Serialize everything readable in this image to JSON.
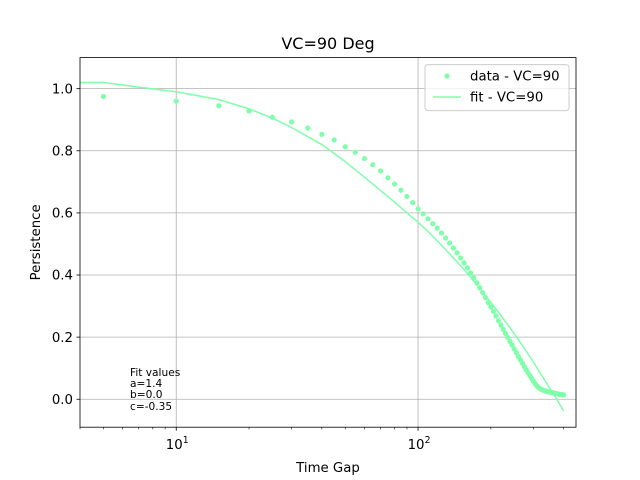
{
  "chart_data": {
    "type": "scatter",
    "title": "VC=90 Deg",
    "xlabel": "Time Gap",
    "ylabel": "Persistence",
    "xscale": "log",
    "xlim": [
      4.0,
      450
    ],
    "ylim": [
      -0.09,
      1.1
    ],
    "xticks": [
      {
        "value": 10,
        "base": "10",
        "exp": "1"
      },
      {
        "value": 100,
        "base": "10",
        "exp": "2"
      }
    ],
    "yticks": [
      {
        "value": 0.0,
        "label": "0.0"
      },
      {
        "value": 0.2,
        "label": "0.2"
      },
      {
        "value": 0.4,
        "label": "0.4"
      },
      {
        "value": 0.6,
        "label": "0.6"
      },
      {
        "value": 0.8,
        "label": "0.8"
      },
      {
        "value": 1.0,
        "label": "1.0"
      }
    ],
    "grid": true,
    "legend_position": "top-right",
    "color": "#7fffaa",
    "series": [
      {
        "name": "data - VC=90",
        "kind": "scatter",
        "x": [
          5,
          10,
          15,
          20,
          25,
          30,
          35,
          40,
          45,
          50,
          55,
          60,
          65,
          70,
          75,
          80,
          85,
          90,
          95,
          100,
          105,
          110,
          115,
          120,
          125,
          130,
          135,
          140,
          145,
          150,
          155,
          160,
          165,
          170,
          175,
          180,
          185,
          190,
          195,
          200,
          205,
          210,
          215,
          220,
          225,
          230,
          235,
          240,
          245,
          250,
          255,
          260,
          265,
          270,
          275,
          280,
          285,
          290,
          295,
          300,
          305,
          310,
          315,
          320,
          325,
          330,
          335,
          340,
          345,
          350,
          355,
          360,
          365,
          370,
          375,
          380,
          385,
          390,
          395,
          400
        ],
        "y": [
          0.975,
          0.96,
          0.945,
          0.928,
          0.908,
          0.893,
          0.873,
          0.853,
          0.835,
          0.813,
          0.795,
          0.775,
          0.755,
          0.735,
          0.713,
          0.693,
          0.673,
          0.653,
          0.633,
          0.613,
          0.597,
          0.581,
          0.565,
          0.551,
          0.535,
          0.519,
          0.503,
          0.487,
          0.471,
          0.455,
          0.439,
          0.423,
          0.407,
          0.391,
          0.375,
          0.359,
          0.343,
          0.327,
          0.311,
          0.297,
          0.283,
          0.268,
          0.253,
          0.239,
          0.225,
          0.212,
          0.199,
          0.186,
          0.174,
          0.162,
          0.15,
          0.138,
          0.127,
          0.116,
          0.105,
          0.095,
          0.085,
          0.076,
          0.067,
          0.058,
          0.05,
          0.043,
          0.038,
          0.034,
          0.031,
          0.029,
          0.027,
          0.025,
          0.024,
          0.023,
          0.022,
          0.021,
          0.02,
          0.019,
          0.018,
          0.017,
          0.016,
          0.015,
          0.015,
          0.014
        ]
      },
      {
        "name": "fit - VC=90",
        "kind": "line",
        "x": [
          4,
          5,
          7,
          10,
          15,
          20,
          25,
          30,
          40,
          50,
          60,
          70,
          80,
          90,
          100,
          110,
          120,
          130,
          140,
          150,
          160,
          170,
          180,
          190,
          200,
          220,
          240,
          260,
          280,
          300,
          320,
          340,
          360,
          380,
          400
        ],
        "y": [
          1.02,
          1.02,
          1.005,
          0.99,
          0.965,
          0.935,
          0.905,
          0.875,
          0.82,
          0.765,
          0.715,
          0.672,
          0.635,
          0.6,
          0.57,
          0.54,
          0.51,
          0.482,
          0.455,
          0.43,
          0.405,
          0.38,
          0.356,
          0.333,
          0.312,
          0.27,
          0.23,
          0.192,
          0.155,
          0.12,
          0.085,
          0.052,
          0.022,
          -0.008,
          -0.038
        ]
      }
    ],
    "annotation": {
      "lines": [
        "Fit values",
        "a=1.4",
        "b=0.0",
        "c=-0.35"
      ]
    }
  }
}
